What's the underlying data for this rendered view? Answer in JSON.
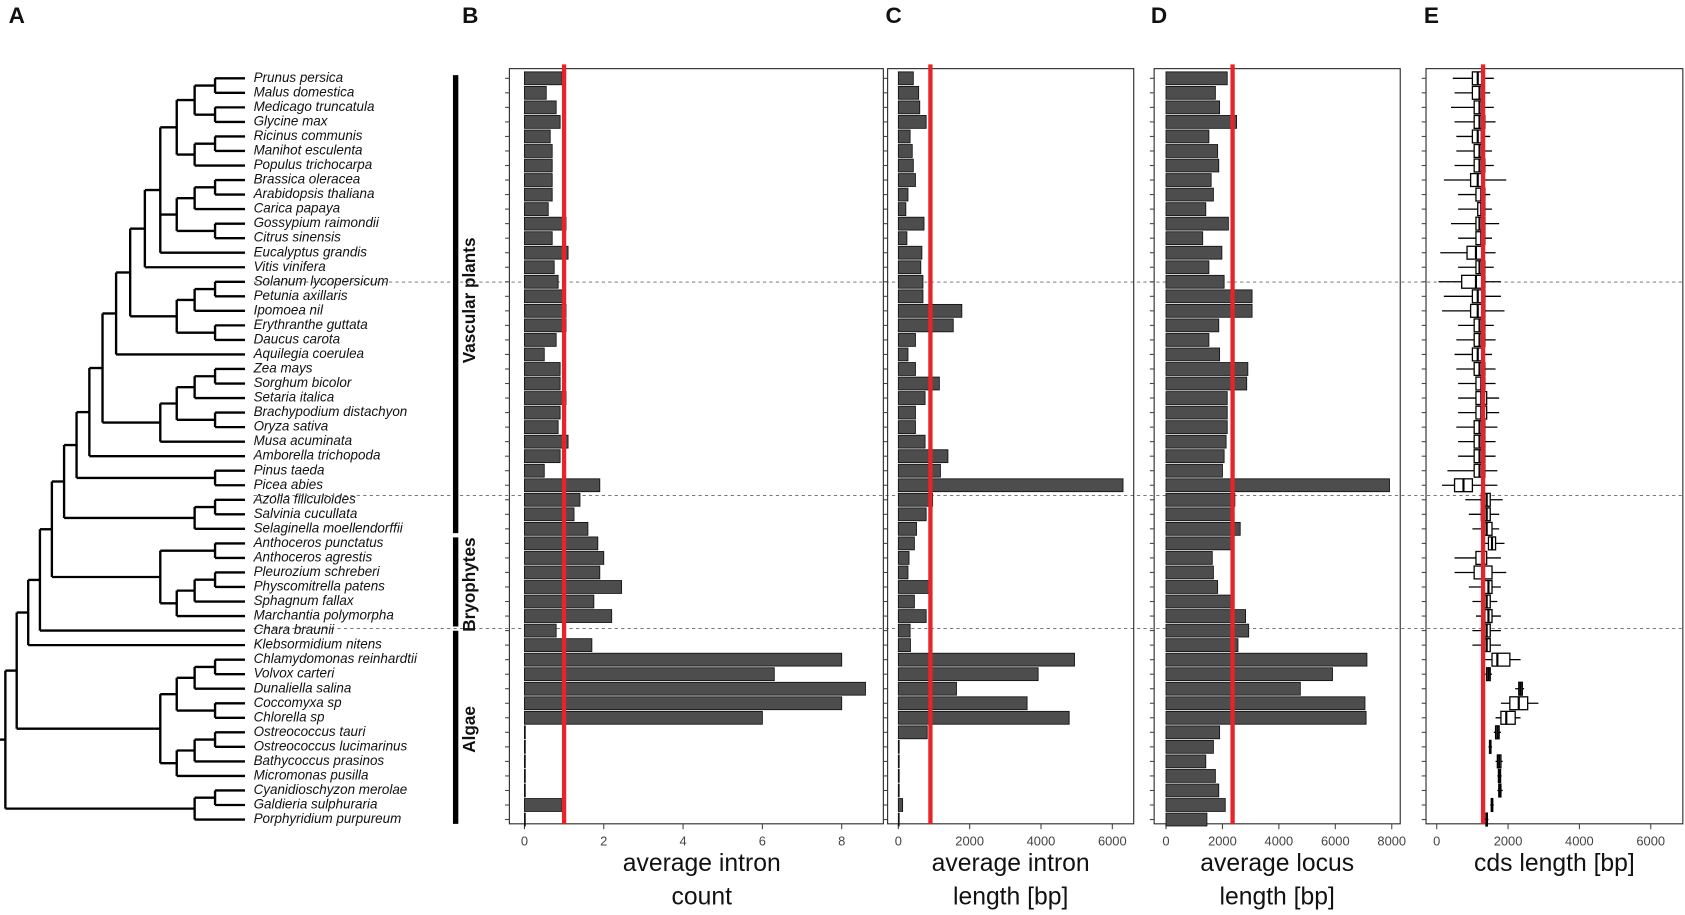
{
  "panel_labels": [
    "A",
    "B",
    "C",
    "D",
    "E"
  ],
  "groups": [
    "Vascular plants",
    "Bryophytes",
    "Algae"
  ],
  "species": [
    "Prunus persica",
    "Malus domestica",
    "Medicago truncatula",
    "Glycine max",
    "Ricinus communis",
    "Manihot esculenta",
    "Populus trichocarpa",
    "Brassica oleracea",
    "Arabidopsis thaliana",
    "Carica papaya",
    "Gossypium raimondii",
    "Citrus sinensis",
    "Eucalyptus grandis",
    "Vitis vinifera",
    "Solanum lycopersicum",
    "Petunia axillaris",
    "Ipomoea nil",
    "Erythranthe guttata",
    "Daucus carota",
    "Aquilegia coerulea",
    "Zea mays",
    "Sorghum bicolor",
    "Setaria italica",
    "Brachypodium distachyon",
    "Oryza sativa",
    "Musa acuminata",
    "Amborella trichopoda",
    "Pinus taeda",
    "Picea abies",
    "Azolla filiculoides",
    "Salvinia cucullata",
    "Selaginella moellendorffii",
    "Anthoceros punctatus",
    "Anthoceros agrestis",
    "Pleurozium schreberi",
    "Physcomitrella patens",
    "Sphagnum fallax",
    "Marchantia polymorpha",
    "Chara braunii",
    "Klebsormidium nitens",
    "Chlamydomonas reinhardtii",
    "Volvox carteri",
    "Dunaliella salina",
    "Coccomyxa sp",
    "Chlorella sp",
    "Ostreococcus tauri",
    "Ostreococcus lucimarinus",
    "Bathycoccus prasinos",
    "Micromonas pusilla",
    "Cyanidioschyzon merolae",
    "Galdieria sulphuraria",
    "Porphyridium purpureum"
  ],
  "chart_data": [
    {
      "type": "bar",
      "xlabel": [
        "average intron",
        "count"
      ],
      "color": "#4d4d4d",
      "reference_line": 1,
      "reference_color": "#e8232a",
      "xlim": [
        -0.38,
        9.05
      ],
      "xticks": [
        0,
        2,
        4,
        6,
        8
      ],
      "values": [
        0.95,
        0.55,
        0.8,
        0.9,
        0.65,
        0.7,
        0.7,
        0.7,
        0.7,
        0.6,
        1.05,
        0.7,
        1.1,
        0.75,
        0.85,
        1.0,
        1.05,
        1.05,
        0.8,
        0.5,
        0.9,
        0.9,
        1.05,
        0.9,
        0.85,
        1.1,
        0.9,
        0.5,
        1.9,
        1.4,
        1.25,
        1.6,
        1.85,
        2.0,
        1.9,
        2.45,
        1.75,
        2.2,
        0.8,
        1.7,
        8.0,
        6.3,
        8.6,
        8.0,
        6.0,
        0,
        0.02,
        0.02,
        0.02,
        0.02,
        0.95,
        0
      ]
    },
    {
      "type": "bar",
      "xlabel": [
        "average intron",
        "length [bp]"
      ],
      "color": "#4d4d4d",
      "reference_line": 900,
      "reference_color": "#e8232a",
      "xlim": [
        -300,
        6600
      ],
      "xticks": [
        0,
        2000,
        4000,
        6000
      ],
      "values": [
        420,
        570,
        600,
        780,
        330,
        390,
        420,
        480,
        270,
        210,
        720,
        240,
        660,
        630,
        690,
        690,
        1780,
        1540,
        480,
        270,
        480,
        1150,
        750,
        480,
        480,
        750,
        1390,
        1180,
        6300,
        960,
        780,
        510,
        450,
        300,
        270,
        930,
        450,
        780,
        330,
        340,
        4940,
        3920,
        1630,
        3610,
        4790,
        810,
        0,
        0,
        0,
        0,
        120,
        0
      ]
    },
    {
      "type": "bar",
      "xlabel": [
        "average locus",
        "length [bp]"
      ],
      "color": "#4d4d4d",
      "reference_line": 2360,
      "reference_color": "#e8232a",
      "xlim": [
        -420,
        8300
      ],
      "xticks": [
        0,
        2000,
        4000,
        6000,
        8000
      ],
      "values": [
        2170,
        1750,
        1900,
        2500,
        1520,
        1830,
        1870,
        1600,
        1680,
        1410,
        2210,
        1300,
        1980,
        1520,
        2060,
        3050,
        3050,
        1870,
        1520,
        1900,
        2900,
        2860,
        2170,
        2170,
        2170,
        2130,
        2060,
        2000,
        7920,
        2440,
        2400,
        2630,
        2400,
        1640,
        1680,
        1830,
        2360,
        2820,
        2930,
        2550,
        7120,
        5900,
        4760,
        7050,
        7090,
        1900,
        1680,
        1410,
        1750,
        1870,
        2100,
        1450
      ]
    },
    {
      "type": "box",
      "xlabel": [
        "cds length [bp]"
      ],
      "color": "#000000",
      "reference_line": 1300,
      "reference_color": "#e8232a",
      "xlim": [
        -300,
        6900
      ],
      "xticks": [
        0,
        2000,
        4000,
        6000
      ],
      "boxes": [
        [
          450,
          1000,
          1150,
          1300,
          1600
        ],
        [
          500,
          1000,
          1200,
          1300,
          1500
        ],
        [
          400,
          1050,
          1200,
          1300,
          1600
        ],
        [
          500,
          1050,
          1200,
          1350,
          1650
        ],
        [
          550,
          1000,
          1150,
          1250,
          1500
        ],
        [
          550,
          1050,
          1200,
          1300,
          1550
        ],
        [
          500,
          1050,
          1200,
          1350,
          1600
        ],
        [
          200,
          950,
          1150,
          1300,
          1950
        ],
        [
          600,
          1100,
          1250,
          1350,
          1500
        ],
        [
          600,
          1150,
          1250,
          1350,
          1550
        ],
        [
          400,
          1100,
          1200,
          1350,
          1750
        ],
        [
          600,
          1100,
          1250,
          1350,
          1550
        ],
        [
          100,
          850,
          1100,
          1300,
          1650
        ],
        [
          600,
          1100,
          1200,
          1350,
          1600
        ],
        [
          50,
          700,
          1100,
          1350,
          1800
        ],
        [
          200,
          1000,
          1150,
          1350,
          1800
        ],
        [
          150,
          950,
          1150,
          1350,
          1900
        ],
        [
          600,
          1050,
          1200,
          1350,
          1600
        ],
        [
          550,
          1050,
          1200,
          1350,
          1650
        ],
        [
          500,
          1000,
          1150,
          1300,
          1550
        ],
        [
          550,
          1050,
          1200,
          1350,
          1650
        ],
        [
          600,
          1100,
          1250,
          1350,
          1650
        ],
        [
          600,
          1100,
          1250,
          1400,
          1750
        ],
        [
          600,
          1100,
          1250,
          1400,
          1750
        ],
        [
          550,
          1050,
          1200,
          1350,
          1700
        ],
        [
          600,
          1050,
          1200,
          1350,
          1650
        ],
        [
          600,
          1050,
          1200,
          1350,
          1650
        ],
        [
          300,
          1050,
          1200,
          1350,
          1700
        ],
        [
          150,
          500,
          750,
          1000,
          1700
        ],
        [
          800,
          1250,
          1400,
          1500,
          1850
        ],
        [
          900,
          1250,
          1400,
          1500,
          1750
        ],
        [
          1000,
          1300,
          1400,
          1550,
          1750
        ],
        [
          1300,
          1450,
          1550,
          1650,
          1900
        ],
        [
          500,
          1100,
          1300,
          1400,
          1800
        ],
        [
          500,
          1050,
          1300,
          1550,
          1950
        ],
        [
          900,
          1300,
          1450,
          1550,
          1800
        ],
        [
          1000,
          1300,
          1400,
          1500,
          1700
        ],
        [
          1100,
          1350,
          1450,
          1550,
          1800
        ],
        [
          1000,
          1300,
          1400,
          1500,
          1800
        ],
        [
          1000,
          1300,
          1400,
          1500,
          1800
        ],
        [
          1300,
          1550,
          1700,
          2050,
          2350
        ],
        [
          1350,
          1400,
          1450,
          1500,
          1550
        ],
        [
          2200,
          2300,
          2350,
          2400,
          2450
        ],
        [
          1800,
          2050,
          2300,
          2550,
          2850
        ],
        [
          1650,
          1800,
          1950,
          2200,
          2350
        ],
        [
          1600,
          1650,
          1700,
          1750,
          1800
        ],
        [
          1450,
          1480,
          1500,
          1520,
          1550
        ],
        [
          1650,
          1700,
          1750,
          1800,
          1850
        ],
        [
          1700,
          1730,
          1760,
          1790,
          1820
        ],
        [
          1700,
          1740,
          1770,
          1800,
          1850
        ],
        [
          1500,
          1530,
          1550,
          1570,
          1600
        ],
        [
          1350,
          1380,
          1400,
          1420,
          1450
        ]
      ]
    }
  ]
}
